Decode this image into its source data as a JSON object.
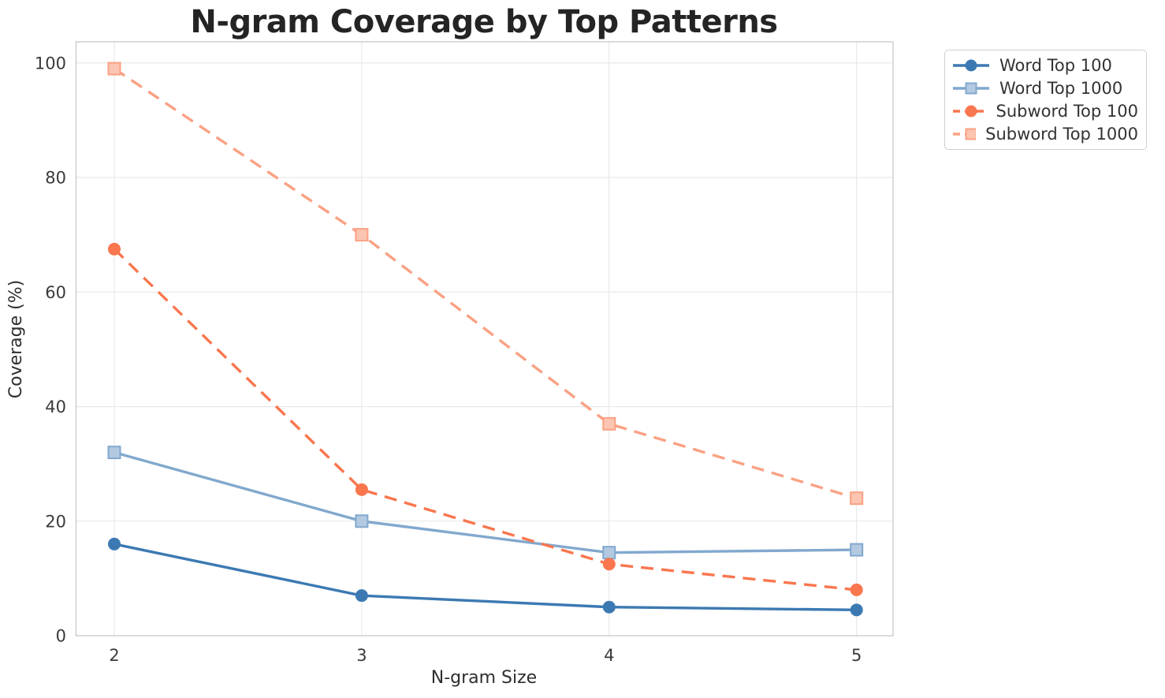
{
  "chart_data": {
    "type": "line",
    "title": "N-gram Coverage by Top Patterns",
    "xlabel": "N-gram Size",
    "ylabel": "Coverage (%)",
    "x": [
      2,
      3,
      4,
      5
    ],
    "xtick_labels": [
      "2",
      "3",
      "4",
      "5"
    ],
    "yticks": [
      0,
      20,
      40,
      60,
      80,
      100
    ],
    "ytick_labels": [
      "0",
      "20",
      "40",
      "60",
      "80",
      "100"
    ],
    "xlim": [
      1.85,
      5.15
    ],
    "ylim": [
      0,
      103.7
    ],
    "grid": true,
    "legend_position": "outside-upper-right",
    "series": [
      {
        "name": "Word Top 100",
        "values": [
          16,
          7,
          5,
          4.5
        ],
        "color": "#3c79b2",
        "marker": "circle",
        "line_style": "solid"
      },
      {
        "name": "Word Top 1000",
        "values": [
          32,
          20,
          14.5,
          15
        ],
        "color": "#82a8ce",
        "marker": "square",
        "line_style": "solid"
      },
      {
        "name": "Subword Top 100",
        "values": [
          67.5,
          25.5,
          12.5,
          8
        ],
        "color": "#f9764e",
        "marker": "circle",
        "line_style": "dashed"
      },
      {
        "name": "Subword Top 1000",
        "values": [
          99,
          70,
          37,
          24
        ],
        "color": "#faa183",
        "marker": "square",
        "line_style": "dashed"
      }
    ],
    "style": {
      "grid_color": "#e7e7e7",
      "spine_color": "#cccccc",
      "background": "#ffffff",
      "title_color": "#242424",
      "text_color": "#3a3a3a"
    }
  }
}
